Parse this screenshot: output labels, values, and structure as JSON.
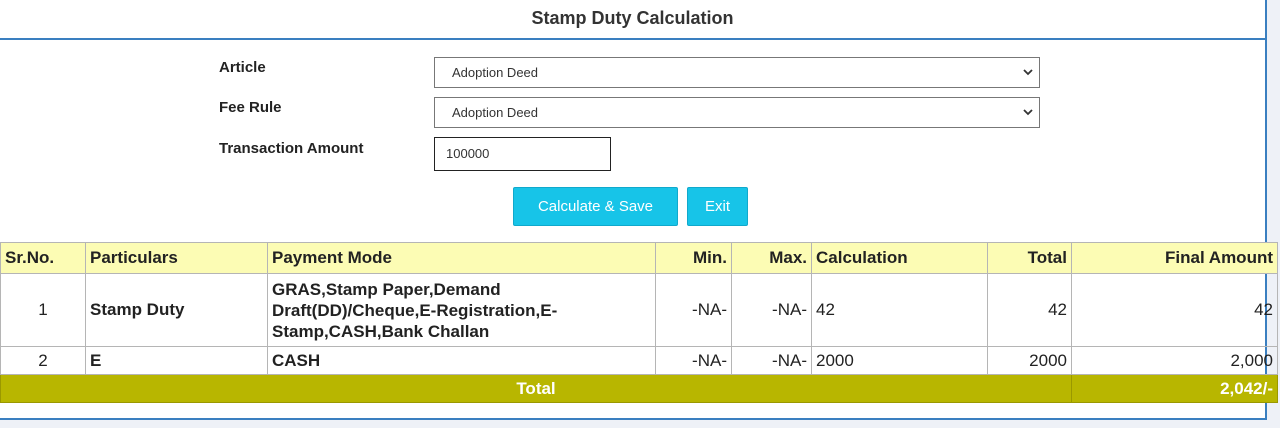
{
  "page": {
    "title": "Stamp Duty Calculation"
  },
  "form": {
    "article_label": "Article",
    "article_value": "Adoption Deed",
    "fee_rule_label": "Fee Rule",
    "fee_rule_value": "Adoption Deed",
    "transaction_amount_label": "Transaction Amount",
    "transaction_amount_value": "100000"
  },
  "buttons": {
    "calculate": "Calculate & Save",
    "exit": "Exit"
  },
  "table": {
    "headers": {
      "sr_no": "Sr.No.",
      "particulars": "Particulars",
      "payment_mode": "Payment Mode",
      "min": "Min.",
      "max": "Max.",
      "calculation": "Calculation",
      "total": "Total",
      "final_amount": "Final Amount"
    },
    "rows": [
      {
        "sr_no": "1",
        "particulars": "Stamp Duty",
        "payment_mode": "GRAS,Stamp Paper,Demand Draft(DD)/Cheque,E-Registration,E-Stamp,CASH,Bank Challan",
        "min": "-NA-",
        "max": "-NA-",
        "calculation": "42",
        "total": "42",
        "final_amount": "42"
      },
      {
        "sr_no": "2",
        "particulars": "E",
        "payment_mode": "CASH",
        "min": "-NA-",
        "max": "-NA-",
        "calculation": "2000",
        "total": "2000",
        "final_amount": "2,000"
      }
    ],
    "total_label": "Total",
    "total_value": "2,042/-"
  },
  "colors": {
    "accent_border": "#3a7fc0",
    "button": "#17c4e8",
    "header_row": "#fcfcb4",
    "total_row": "#b8b600"
  }
}
